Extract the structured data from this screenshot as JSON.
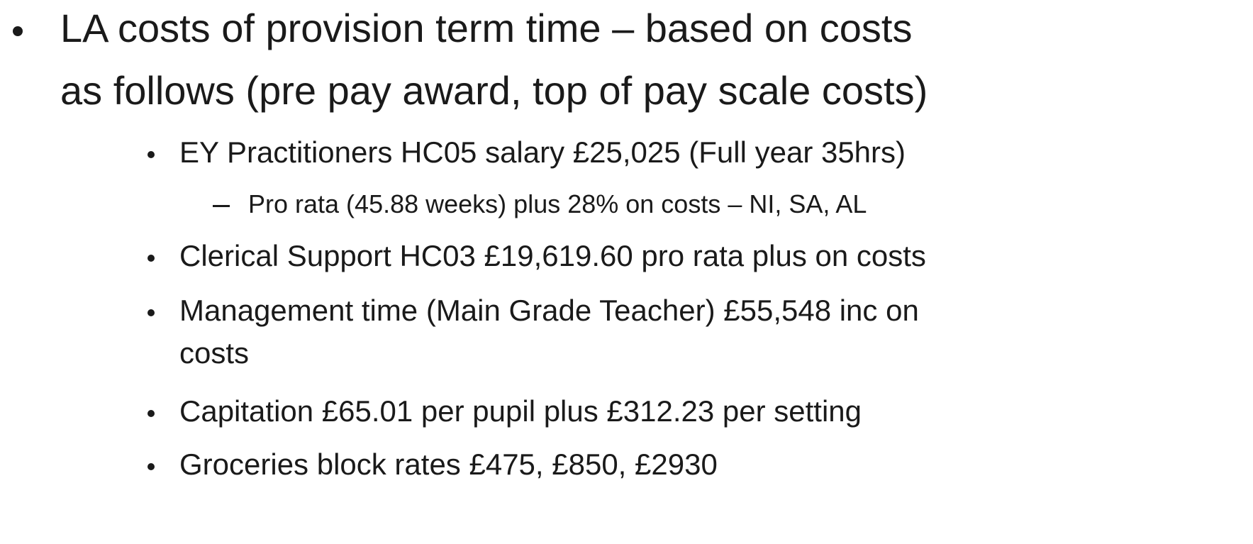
{
  "bullets": [
    {
      "lines": [
        "LA costs of provision term time – based on costs",
        "as follows (pre pay award, top of pay scale costs)"
      ],
      "items": [
        {
          "lines": [
            "EY Practitioners HC05 salary £25,025 (Full year 35hrs)"
          ],
          "items": [
            {
              "lines": [
                "Pro rata (45.88 weeks) plus 28% on costs – NI, SA, AL"
              ]
            }
          ]
        },
        {
          "lines": [
            "Clerical Support HC03 £19,619.60 pro rata plus on costs"
          ]
        },
        {
          "lines": [
            "Management time (Main Grade Teacher) £55,548 inc on",
            "costs"
          ]
        },
        {
          "lines": [
            "Capitation £65.01 per pupil plus £312.23 per setting"
          ]
        },
        {
          "lines": [
            "Groceries block rates £475, £850, £2930"
          ]
        }
      ]
    }
  ]
}
